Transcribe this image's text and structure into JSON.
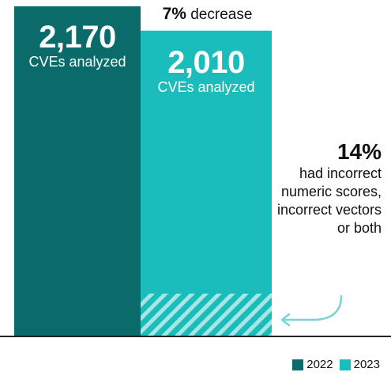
{
  "chart_data": {
    "type": "bar",
    "categories": [
      "2022",
      "2023"
    ],
    "values": [
      2170,
      2010
    ],
    "bar_texts": [
      {
        "value_label": "2,170",
        "sub_label": "CVEs analyzed"
      },
      {
        "value_label": "2,010",
        "sub_label": "CVEs analyzed"
      }
    ],
    "change": {
      "percent": "7%",
      "text": "decrease"
    },
    "annotation": {
      "value": "14%",
      "text": "had incorrect numeric scores, incorrect vectors or both",
      "highlighted_share_of_2023": 0.14
    },
    "legend": {
      "position": "bottom-right",
      "entries": [
        "2022",
        "2023"
      ]
    },
    "colors": {
      "2022": "#0b6b6b",
      "2023": "#1bbcbc",
      "hatch": "#a8e6e6",
      "arrow": "#7cd3d3",
      "baseline": "#222222"
    },
    "ylim": [
      0,
      2170
    ],
    "xlabel": "",
    "ylabel": "",
    "grid": false
  }
}
